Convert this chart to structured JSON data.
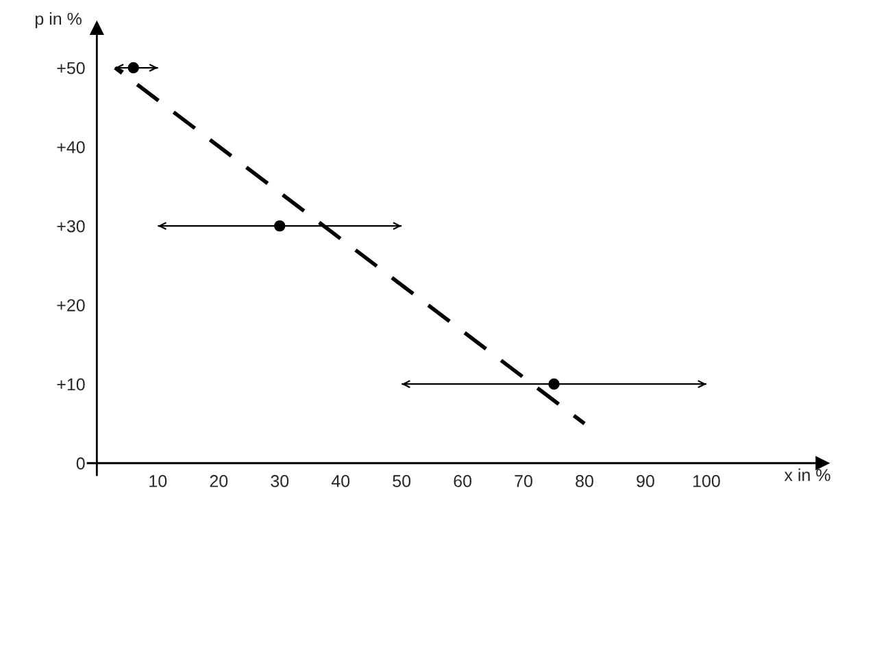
{
  "chart_data": {
    "type": "scatter",
    "xlabel": "x in %",
    "ylabel": "p in %",
    "xlim": [
      -1.5,
      119
    ],
    "ylim": [
      -1.5,
      55
    ],
    "xticks": [
      10,
      20,
      30,
      40,
      50,
      60,
      70,
      80,
      90,
      100
    ],
    "yticks": [
      {
        "value": 0,
        "label": "0"
      },
      {
        "value": 10,
        "label": "+10"
      },
      {
        "value": 20,
        "label": "+20"
      },
      {
        "value": 30,
        "label": "+30"
      },
      {
        "value": 40,
        "label": "+40"
      },
      {
        "value": 50,
        "label": "+50"
      }
    ],
    "grid": false,
    "legend": false,
    "series": [
      {
        "type": "scatter",
        "color": "#000000",
        "marker": "circle",
        "x": [
          6,
          30,
          75
        ],
        "values": [
          50,
          30,
          10
        ],
        "xerrors": [
          [
            3,
            10
          ],
          [
            10,
            50
          ],
          [
            50,
            100
          ]
        ]
      },
      {
        "type": "line",
        "color": "#000000",
        "line_style": "dashed",
        "marker": "none",
        "x": [
          3,
          80
        ],
        "values": [
          50,
          5
        ]
      }
    ]
  }
}
